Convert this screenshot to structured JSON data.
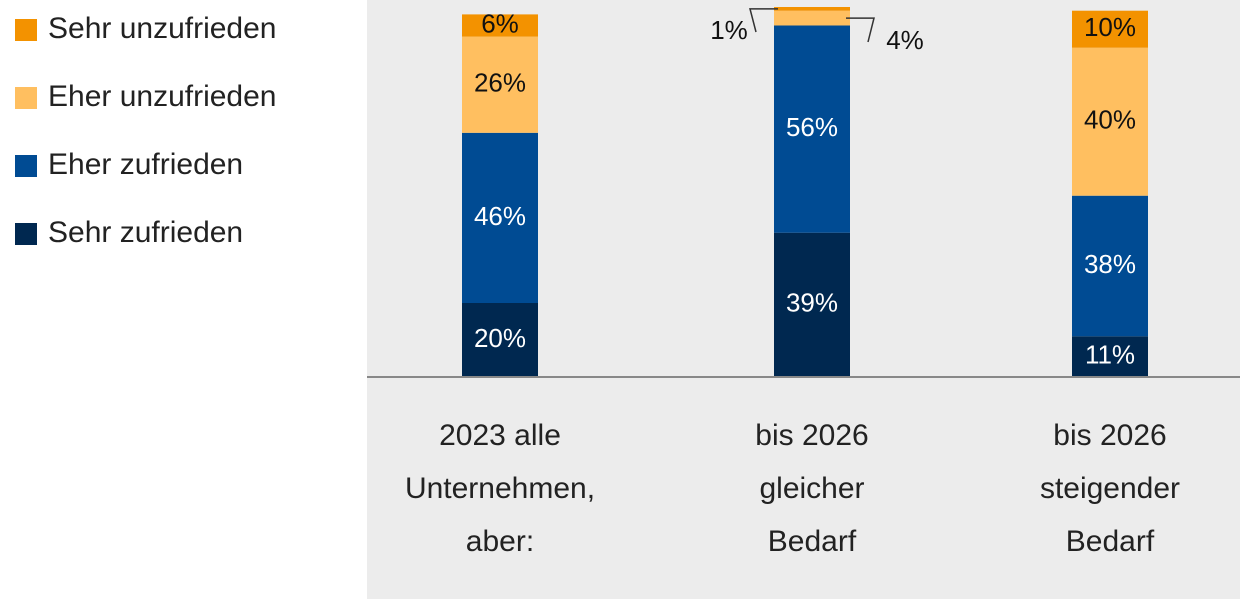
{
  "chart_data": {
    "type": "stacked_bar",
    "categories": [
      [
        "2023 alle",
        "Unternehmen,",
        "aber:"
      ],
      [
        "bis 2026",
        "gleicher",
        "Bedarf"
      ],
      [
        "bis 2026",
        "steigender",
        "Bedarf"
      ]
    ],
    "series": [
      {
        "name": "Sehr zufrieden",
        "color": "#002850",
        "values": [
          20,
          39,
          11
        ],
        "value_labels": [
          "20%",
          "39%",
          "11%"
        ]
      },
      {
        "name": "Eher zufrieden",
        "color": "#004b93",
        "values": [
          46,
          56,
          38
        ],
        "value_labels": [
          "46%",
          "56%",
          "38%"
        ]
      },
      {
        "name": "Eher unzufrieden",
        "color": "#ffbf60",
        "values": [
          26,
          4,
          40
        ],
        "value_labels": [
          "26%",
          "4%",
          "40%"
        ]
      },
      {
        "name": "Sehr unzufrieden",
        "color": "#f39200",
        "values": [
          6,
          1,
          10
        ],
        "value_labels": [
          "6%",
          "1%",
          "10%"
        ]
      }
    ],
    "ylim": [
      0,
      100
    ],
    "legend": "left"
  }
}
